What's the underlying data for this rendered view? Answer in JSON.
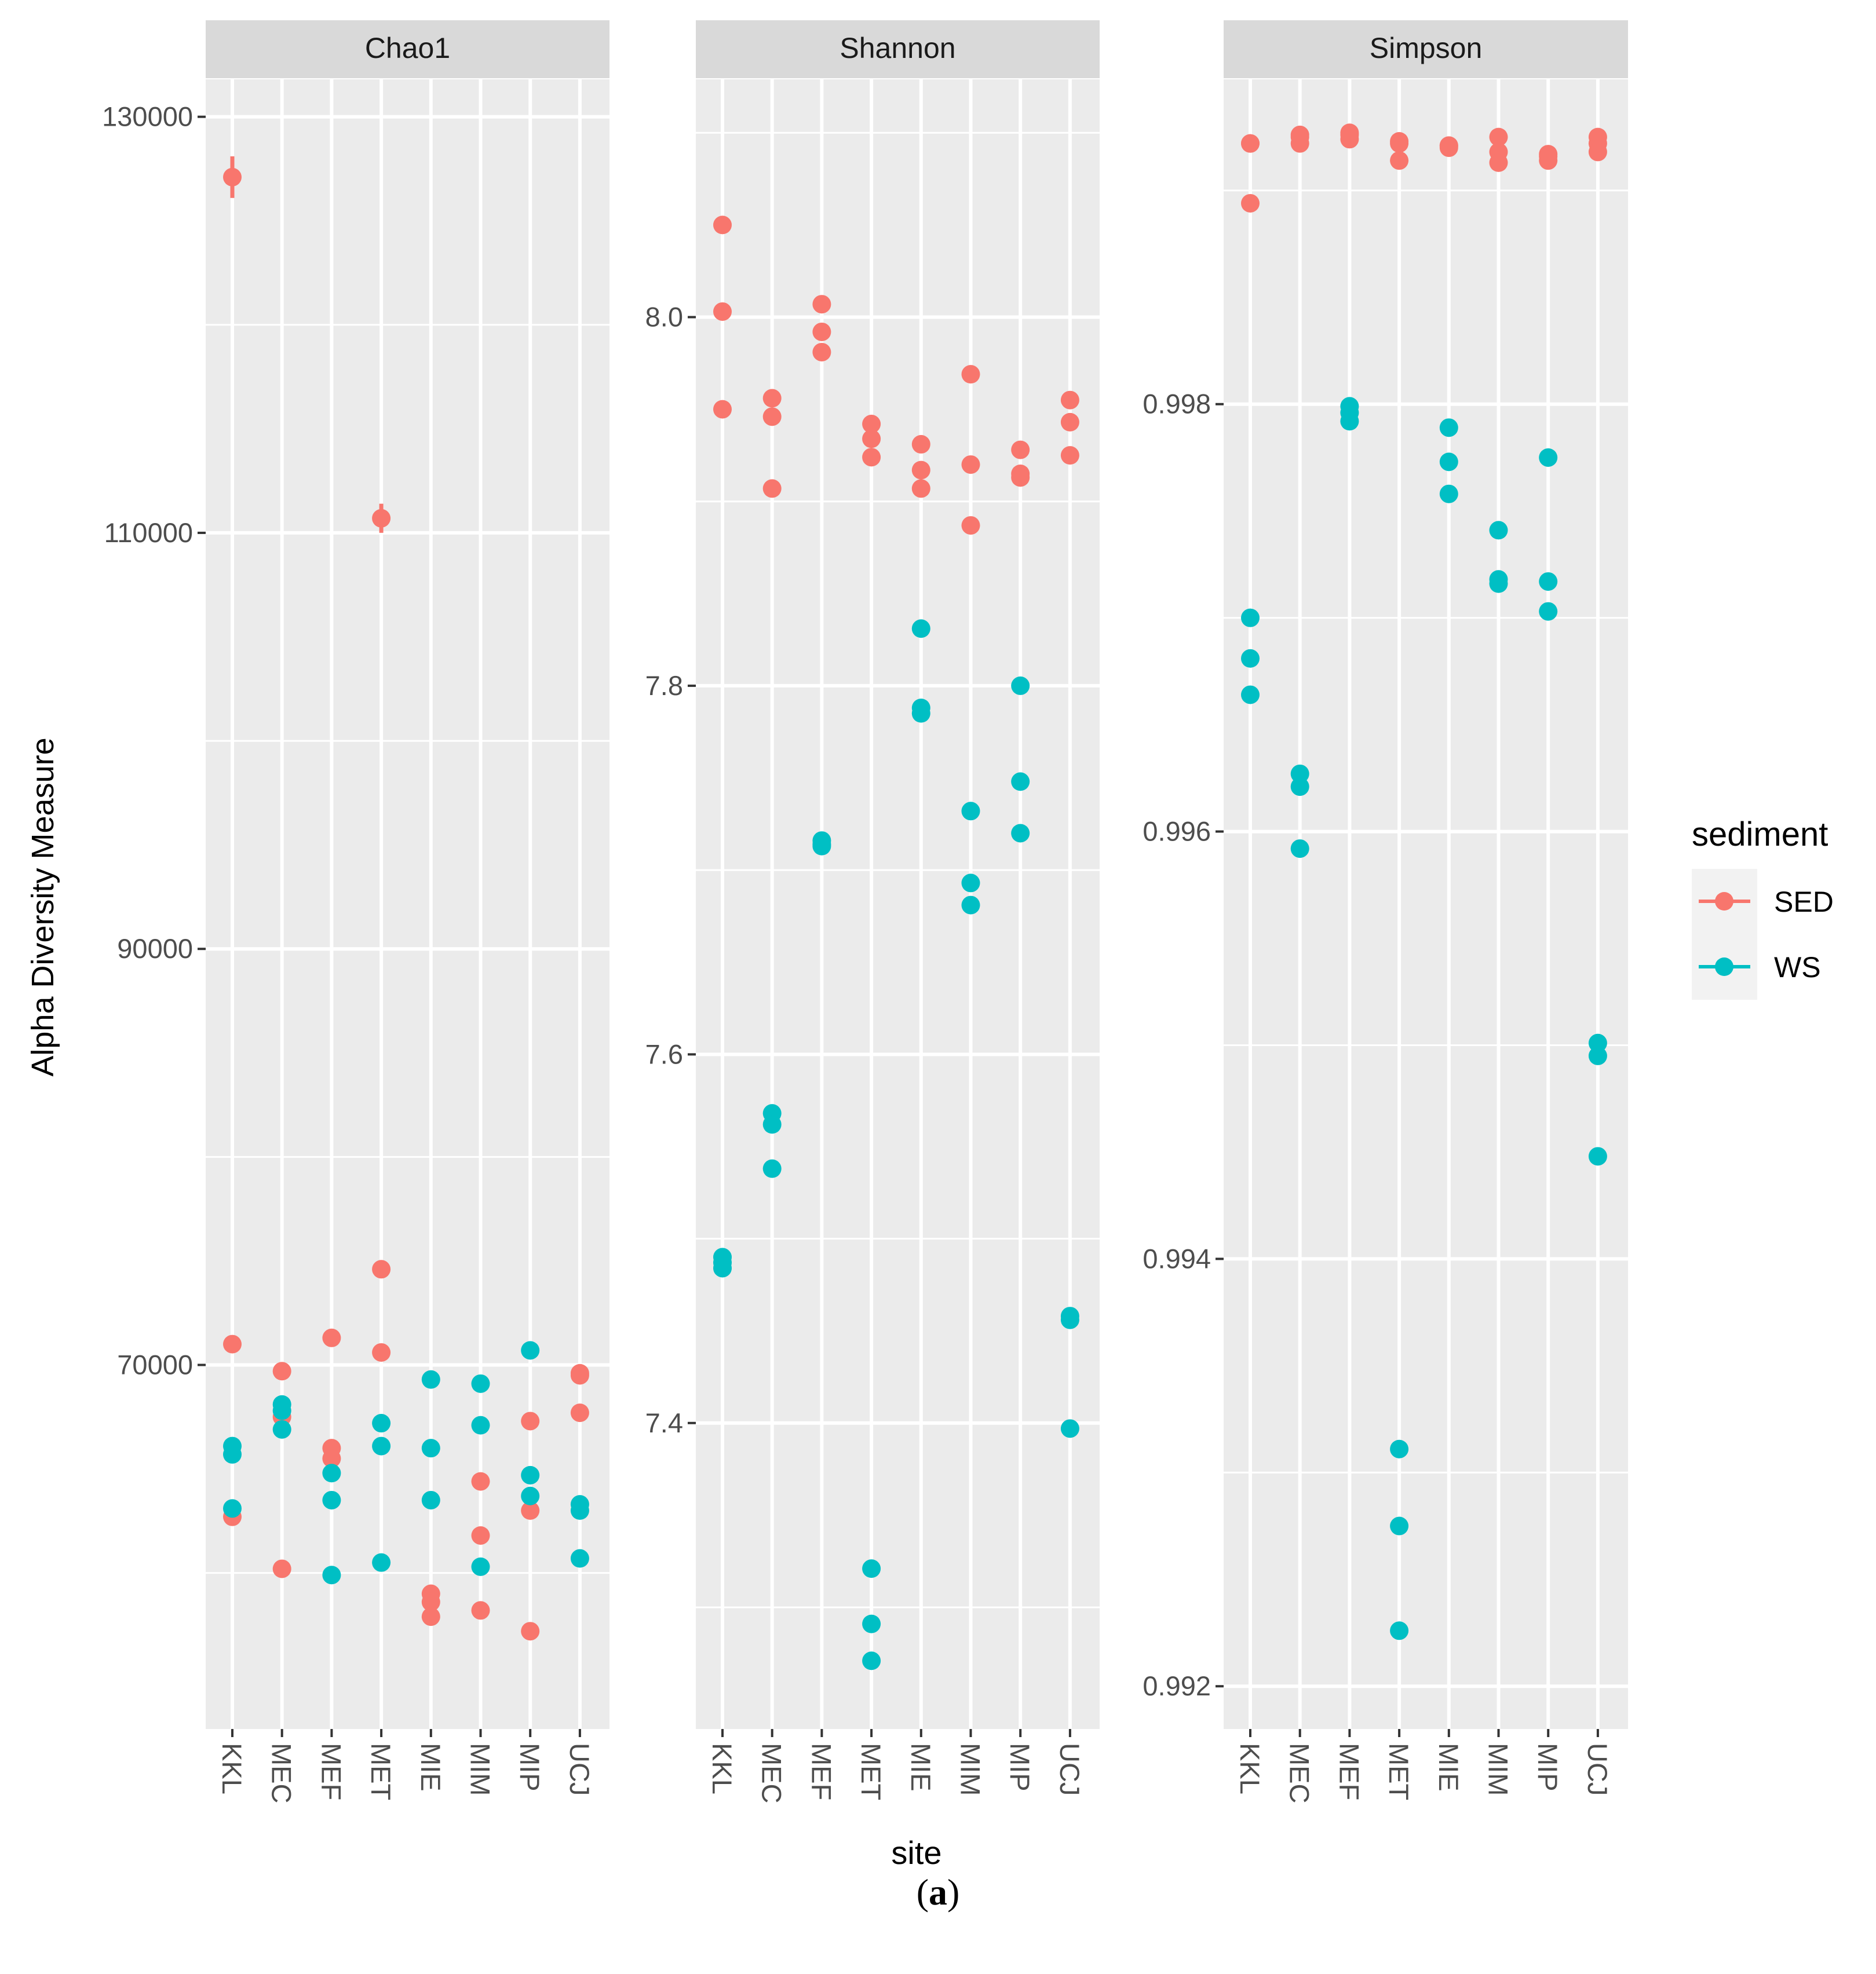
{
  "chart_data": {
    "type": "scatter",
    "x_label": "site",
    "y_label": "Alpha Diversity Measure",
    "categories": [
      "KKL",
      "MEC",
      "MEF",
      "MET",
      "MIE",
      "MIM",
      "MIP",
      "UCJ"
    ],
    "legend": {
      "title": "sediment",
      "position": "right",
      "entries": [
        {
          "name": "SED",
          "color": "#F8766D"
        },
        {
          "name": "WS",
          "color": "#00BFC4"
        }
      ]
    },
    "panels": [
      {
        "title": "Chao1",
        "ylim": [
          52500,
          131800
        ],
        "major_ticks": [
          70000,
          90000,
          110000,
          130000
        ],
        "minor_ticks": [
          60000,
          80000,
          100000,
          120000
        ],
        "tick_labels": [
          "70000",
          "90000",
          "110000",
          "130000"
        ],
        "series": [
          {
            "name": "SED",
            "points": {
              "KKL": [
                127100,
                71000,
                62700
              ],
              "MEC": [
                69700,
                67500,
                60200
              ],
              "MEF": [
                71300,
                66000,
                65500
              ],
              "MET": [
                74600,
                70600,
                110700
              ],
              "MIE": [
                59000,
                58600,
                57900
              ],
              "MIM": [
                64400,
                61800,
                58200
              ],
              "MIP": [
                67300,
                63000,
                57200
              ],
              "UCJ": [
                69500,
                67700,
                69600
              ]
            }
          },
          {
            "name": "WS",
            "points": {
              "KKL": [
                66100,
                65700,
                63100
              ],
              "MEC": [
                68100,
                67800,
                66900
              ],
              "MEF": [
                64800,
                63500,
                59900
              ],
              "MET": [
                67200,
                66100,
                60500
              ],
              "MIE": [
                69300,
                66000,
                63500
              ],
              "MIM": [
                69100,
                67100,
                60300
              ],
              "MIP": [
                70700,
                64700,
                63700
              ],
              "UCJ": [
                63300,
                63000,
                60700
              ]
            }
          }
        ],
        "error_bars": [
          {
            "site": "KKL",
            "low": 126100,
            "high": 128100
          },
          {
            "site": "MET",
            "low": 110000,
            "high": 111400
          }
        ]
      },
      {
        "title": "Shannon",
        "ylim": [
          7.234,
          8.129
        ],
        "major_ticks": [
          7.4,
          7.6,
          7.8,
          8.0
        ],
        "minor_ticks": [
          7.3,
          7.5,
          7.7,
          7.9,
          8.1
        ],
        "tick_labels": [
          "7.4",
          "7.6",
          "7.8",
          "8.0"
        ],
        "series": [
          {
            "name": "SED",
            "points": {
              "KKL": [
                8.05,
                8.003,
                7.95
              ],
              "MEC": [
                7.956,
                7.946,
                7.907
              ],
              "MEF": [
                8.007,
                7.992,
                7.981
              ],
              "MET": [
                7.942,
                7.934,
                7.924
              ],
              "MIE": [
                7.931,
                7.917,
                7.907
              ],
              "MIM": [
                7.969,
                7.92,
                7.887
              ],
              "MIP": [
                7.928,
                7.915,
                7.913
              ],
              "UCJ": [
                7.955,
                7.943,
                7.925
              ]
            }
          },
          {
            "name": "WS",
            "points": {
              "KKL": [
                7.49,
                7.487,
                7.484
              ],
              "MEC": [
                7.568,
                7.562,
                7.538
              ],
              "MEF": [
                7.716,
                7.714,
                7.713
              ],
              "MET": [
                7.321,
                7.291,
                7.271
              ],
              "MIE": [
                7.831,
                7.788,
                7.785
              ],
              "MIM": [
                7.732,
                7.693,
                7.681
              ],
              "MIP": [
                7.8,
                7.748,
                7.72
              ],
              "UCJ": [
                7.458,
                7.456,
                7.397
              ]
            }
          }
        ]
      },
      {
        "title": "Simpson",
        "ylim": [
          0.9918,
          0.99952
        ],
        "major_ticks": [
          0.992,
          0.994,
          0.996,
          0.998
        ],
        "minor_ticks": [
          0.993,
          0.995,
          0.997,
          0.999
        ],
        "tick_labels": [
          "0.992",
          "0.994",
          "0.996",
          "0.998"
        ],
        "series": [
          {
            "name": "SED",
            "points": {
              "KKL": [
                0.99922,
                0.99894,
                0.99922
              ],
              "MEC": [
                0.99926,
                0.99922,
                0.99925
              ],
              "MEF": [
                0.99927,
                0.99924,
                0.99926
              ],
              "MET": [
                0.99923,
                0.99914,
                0.99922
              ],
              "MIE": [
                0.99921,
                0.9992,
                0.99921
              ],
              "MIM": [
                0.99925,
                0.99918,
                0.99913
              ],
              "MIP": [
                0.99917,
                0.99914,
                0.99916
              ],
              "UCJ": [
                0.99925,
                0.99922,
                0.99918
              ]
            }
          },
          {
            "name": "WS",
            "points": {
              "KKL": [
                0.997,
                0.99681,
                0.99664
              ],
              "MEC": [
                0.99627,
                0.99621,
                0.99592
              ],
              "MEF": [
                0.99799,
                0.99796,
                0.99792
              ],
              "MET": [
                0.99311,
                0.99275,
                0.99226
              ],
              "MIE": [
                0.99789,
                0.99773,
                0.99758
              ],
              "MIM": [
                0.99741,
                0.99718,
                0.99716
              ],
              "MIP": [
                0.99775,
                0.99717,
                0.99703
              ],
              "UCJ": [
                0.99501,
                0.99495,
                0.99448
              ]
            }
          }
        ]
      }
    ]
  },
  "caption": {
    "open": "(",
    "letter": "a",
    "close": ")"
  }
}
